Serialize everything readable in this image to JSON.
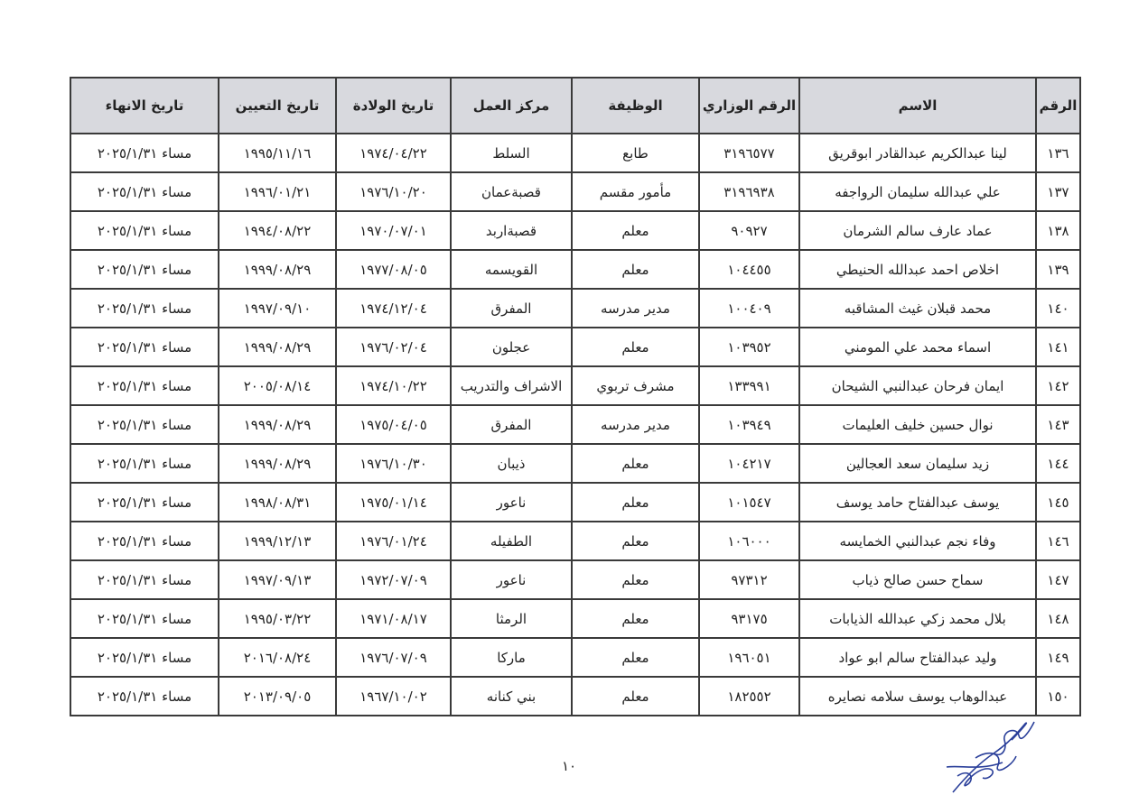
{
  "table": {
    "headers": [
      "الرقم",
      "الاسم",
      "الرقم الوزاري",
      "الوظيفة",
      "مركز العمل",
      "تاريخ الولادة",
      "تاريخ التعيين",
      "تاريخ الانهاء"
    ],
    "rows": [
      [
        "١٣٦",
        "لينا عبدالكريم عبدالقادر  ابوقريق",
        "٣١٩٦٥٧٧",
        "طابع",
        "السلط",
        "١٩٧٤/٠٤/٢٢",
        "١٩٩٥/١١/١٦",
        "مساء ٢٠٢٥/١/٣١"
      ],
      [
        "١٣٧",
        "علي عبدالله سليمان الرواجفه",
        "٣١٩٦٩٣٨",
        "مأمور مقسم",
        "قصبةعمان",
        "١٩٧٦/١٠/٢٠",
        "١٩٩٦/٠١/٢١",
        "مساء ٢٠٢٥/١/٣١"
      ],
      [
        "١٣٨",
        "عماد عارف سالم الشرمان",
        "٩٠٩٢٧",
        "معلم",
        "قصبةاربد",
        "١٩٧٠/٠٧/٠١",
        "١٩٩٤/٠٨/٢٢",
        "مساء ٢٠٢٥/١/٣١"
      ],
      [
        "١٣٩",
        "اخلاص احمد عبدالله الحنيطي",
        "١٠٤٤٥٥",
        "معلم",
        "القويسمه",
        "١٩٧٧/٠٨/٠٥",
        "١٩٩٩/٠٨/٢٩",
        "مساء ٢٠٢٥/١/٣١"
      ],
      [
        "١٤٠",
        "محمد قبلان غيث المشاقبه",
        "١٠٠٤٠٩",
        "مدير مدرسه",
        "المفرق",
        "١٩٧٤/١٢/٠٤",
        "١٩٩٧/٠٩/١٠",
        "مساء ٢٠٢٥/١/٣١"
      ],
      [
        "١٤١",
        "اسماء محمد علي المومني",
        "١٠٣٩٥٢",
        "معلم",
        "عجلون",
        "١٩٧٦/٠٢/٠٤",
        "١٩٩٩/٠٨/٢٩",
        "مساء ٢٠٢٥/١/٣١"
      ],
      [
        "١٤٢",
        "ايمان فرحان عبدالنبي الشيحان",
        "١٣٣٩٩١",
        "مشرف تربوي",
        "الاشراف والتدريب",
        "١٩٧٤/١٠/٢٢",
        "٢٠٠٥/٠٨/١٤",
        "مساء ٢٠٢٥/١/٣١"
      ],
      [
        "١٤٣",
        "نوال حسين خليف العليمات",
        "١٠٣٩٤٩",
        "مدير مدرسه",
        "المفرق",
        "١٩٧٥/٠٤/٠٥",
        "١٩٩٩/٠٨/٢٩",
        "مساء ٢٠٢٥/١/٣١"
      ],
      [
        "١٤٤",
        "زيد سليمان سعد العجالين",
        "١٠٤٢١٧",
        "معلم",
        "ذيبان",
        "١٩٧٦/١٠/٣٠",
        "١٩٩٩/٠٨/٢٩",
        "مساء ٢٠٢٥/١/٣١"
      ],
      [
        "١٤٥",
        "يوسف عبدالفتاح حامد يوسف",
        "١٠١٥٤٧",
        "معلم",
        "ناعور",
        "١٩٧٥/٠١/١٤",
        "١٩٩٨/٠٨/٣١",
        "مساء ٢٠٢٥/١/٣١"
      ],
      [
        "١٤٦",
        "وفاء نجم عبدالنبي الخمايسه",
        "١٠٦٠٠٠",
        "معلم",
        "الطفيله",
        "١٩٧٦/٠١/٢٤",
        "١٩٩٩/١٢/١٣",
        "مساء ٢٠٢٥/١/٣١"
      ],
      [
        "١٤٧",
        "سماح حسن صالح ذياب",
        "٩٧٣١٢",
        "معلم",
        "ناعور",
        "١٩٧٢/٠٧/٠٩",
        "١٩٩٧/٠٩/١٣",
        "مساء ٢٠٢٥/١/٣١"
      ],
      [
        "١٤٨",
        "بلال محمد زكي عبدالله الذيابات",
        "٩٣١٧٥",
        "معلم",
        "الرمثا",
        "١٩٧١/٠٨/١٧",
        "١٩٩٥/٠٣/٢٢",
        "مساء ٢٠٢٥/١/٣١"
      ],
      [
        "١٤٩",
        "وليد عبدالفتاح سالم ابو عواد",
        "١٩٦٠٥١",
        "معلم",
        "ماركا",
        "١٩٧٦/٠٧/٠٩",
        "٢٠١٦/٠٨/٢٤",
        "مساء ٢٠٢٥/١/٣١"
      ],
      [
        "١٥٠",
        "عبدالوهاب يوسف سلامه نصايره",
        "١٨٢٥٥٢",
        "معلم",
        "بني كنانه",
        "١٩٦٧/١٠/٠٢",
        "٢٠١٣/٠٩/٠٥",
        "مساء ٢٠٢٥/١/٣١"
      ]
    ]
  },
  "page_number": "١٠",
  "colors": {
    "header_bg": "#d8d9de",
    "signature_ink": "#2a3f9a"
  }
}
